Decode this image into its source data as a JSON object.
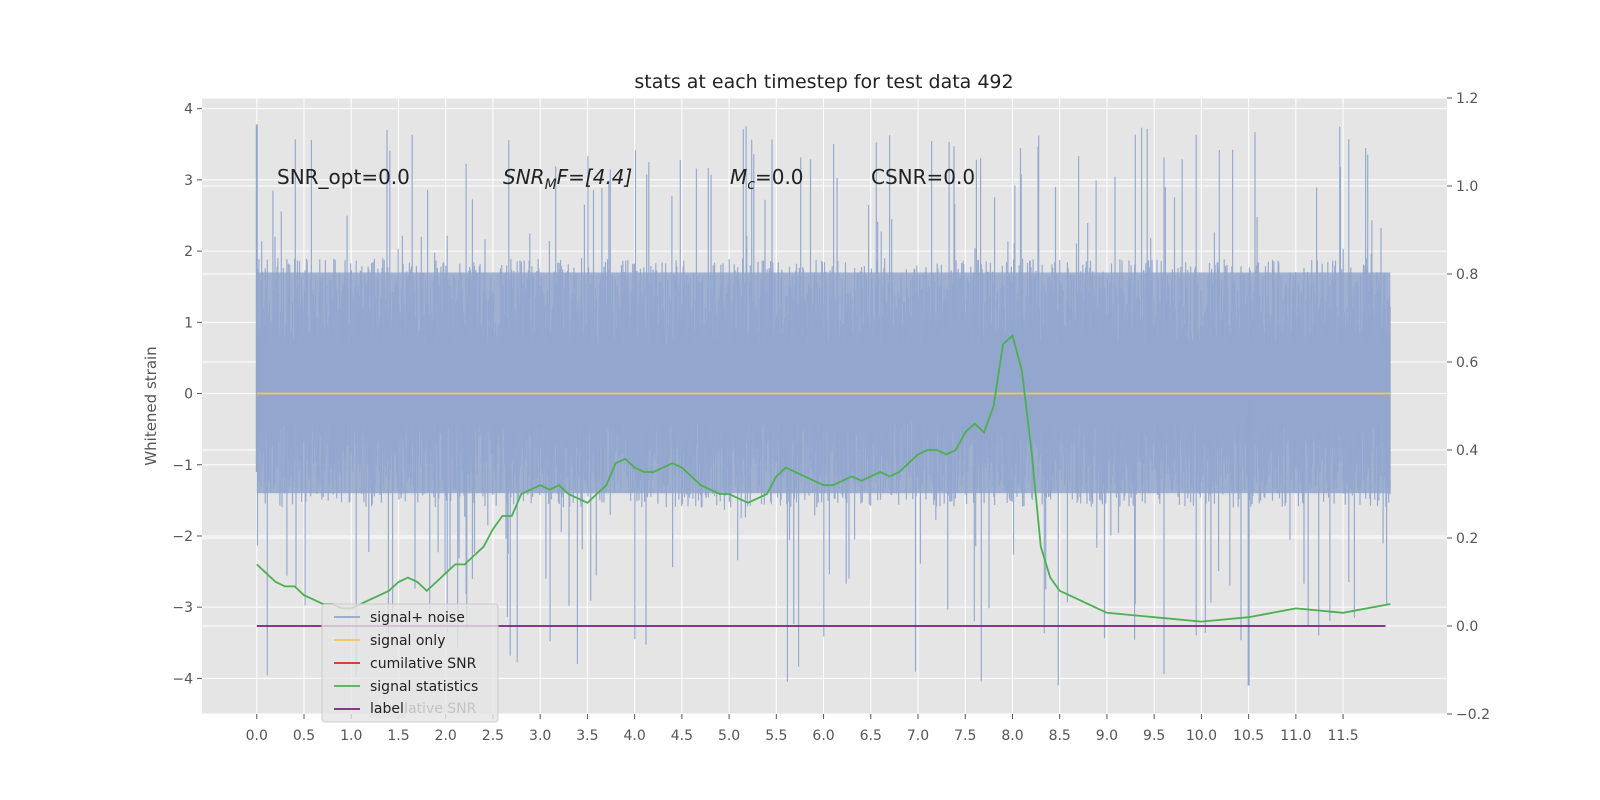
{
  "chart_data": {
    "type": "line",
    "title": "stats at each timestep for test data 492",
    "ylabel": "Whitened strain",
    "xlabel": "",
    "xlim": [
      -0.58,
      12.6
    ],
    "ylim": [
      -4.5,
      4.15
    ],
    "y2lim": [
      -0.2,
      1.2
    ],
    "x_ticks": [
      "0.0",
      "0.5",
      "1.0",
      "1.5",
      "2.0",
      "2.5",
      "3.0",
      "3.5",
      "4.0",
      "4.5",
      "5.0",
      "5.5",
      "6.0",
      "6.5",
      "7.0",
      "7.5",
      "8.0",
      "8.5",
      "9.0",
      "9.5",
      "10.0",
      "10.5",
      "11.0",
      "11.5"
    ],
    "y_ticks": [
      "4",
      "3",
      "2",
      "1",
      "0",
      "−1",
      "−2",
      "−3",
      "−4"
    ],
    "y2_ticks": [
      "1.2",
      "1.0",
      "0.8",
      "0.6",
      "0.4",
      "0.2",
      "0.0",
      "−0.2"
    ],
    "grid": true,
    "legend_position": "lower-left",
    "annotations": {
      "snr_opt": "SNR_opt=0.0",
      "snr_mf_base": "SNR",
      "snr_mf_sub": "M",
      "snr_mf_rest": "F=[4.4]",
      "mc_base": "M",
      "mc_sub": "c",
      "mc_rest": "=0.0",
      "csnr": "CSNR=0.0"
    },
    "noise_envelope": {
      "x": [
        0.0,
        12.0
      ],
      "typical_upper": 1.9,
      "typical_lower": -1.6,
      "max": 3.78,
      "min": -4.1
    },
    "series": [
      {
        "name": "signal+ noise",
        "axis": "left",
        "color": "#92a6cd"
      },
      {
        "name": "signal only",
        "axis": "left",
        "color": "#f5c55b",
        "x": [
          0,
          12
        ],
        "y": [
          0,
          0
        ]
      },
      {
        "name": "cumilative SNR",
        "axis": "right",
        "color": "#d62728"
      },
      {
        "name": "signal statistics",
        "axis": "right",
        "color": "#4caf50",
        "x": [
          0.0,
          0.1,
          0.2,
          0.3,
          0.4,
          0.5,
          0.6,
          0.7,
          0.8,
          0.9,
          1.0,
          1.1,
          1.2,
          1.3,
          1.4,
          1.5,
          1.6,
          1.7,
          1.8,
          1.9,
          2.0,
          2.1,
          2.2,
          2.3,
          2.4,
          2.5,
          2.6,
          2.7,
          2.8,
          2.9,
          3.0,
          3.1,
          3.2,
          3.3,
          3.4,
          3.5,
          3.6,
          3.7,
          3.8,
          3.9,
          4.0,
          4.1,
          4.2,
          4.3,
          4.4,
          4.5,
          4.6,
          4.7,
          4.8,
          4.9,
          5.0,
          5.1,
          5.2,
          5.3,
          5.4,
          5.5,
          5.6,
          5.7,
          5.8,
          5.9,
          6.0,
          6.1,
          6.2,
          6.3,
          6.4,
          6.5,
          6.6,
          6.7,
          6.8,
          6.9,
          7.0,
          7.1,
          7.2,
          7.3,
          7.4,
          7.5,
          7.6,
          7.7,
          7.8,
          7.9,
          8.0,
          8.1,
          8.2,
          8.3,
          8.4,
          8.5,
          8.6,
          8.7,
          8.8,
          8.9,
          9.0,
          9.5,
          10.0,
          10.5,
          11.0,
          11.5,
          12.0
        ],
        "y": [
          0.14,
          0.12,
          0.1,
          0.09,
          0.09,
          0.07,
          0.06,
          0.05,
          0.05,
          0.04,
          0.04,
          0.05,
          0.06,
          0.07,
          0.08,
          0.1,
          0.11,
          0.1,
          0.08,
          0.1,
          0.12,
          0.14,
          0.14,
          0.16,
          0.18,
          0.22,
          0.25,
          0.25,
          0.3,
          0.31,
          0.32,
          0.31,
          0.32,
          0.3,
          0.29,
          0.28,
          0.3,
          0.32,
          0.37,
          0.38,
          0.36,
          0.35,
          0.35,
          0.36,
          0.37,
          0.36,
          0.34,
          0.32,
          0.31,
          0.3,
          0.3,
          0.29,
          0.28,
          0.29,
          0.3,
          0.34,
          0.36,
          0.35,
          0.34,
          0.33,
          0.32,
          0.32,
          0.33,
          0.34,
          0.33,
          0.34,
          0.35,
          0.34,
          0.35,
          0.37,
          0.39,
          0.4,
          0.4,
          0.39,
          0.4,
          0.44,
          0.46,
          0.44,
          0.5,
          0.64,
          0.66,
          0.58,
          0.4,
          0.18,
          0.11,
          0.08,
          0.07,
          0.06,
          0.05,
          0.04,
          0.03,
          0.02,
          0.01,
          0.02,
          0.04,
          0.03,
          0.05
        ]
      },
      {
        "name": "label",
        "axis": "right",
        "color": "#7b1f7f",
        "x": [
          0,
          11.95
        ],
        "y": [
          0,
          0
        ]
      }
    ],
    "legend_overlap_text": "cumilative SNR"
  }
}
